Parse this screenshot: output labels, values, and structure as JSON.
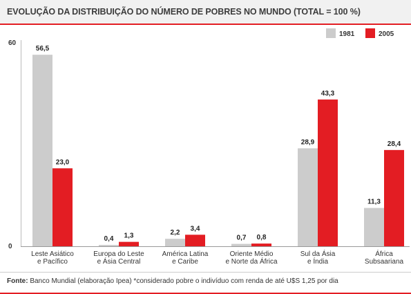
{
  "header": {
    "title": "EVOLUÇÃO DA DISTRIBUIÇÃO DO NÚMERO DE POBRES NO MUNDO (TOTAL = 100 %)"
  },
  "footer": {
    "source_label": "Fonte:",
    "source_text": "Banco Mundial (elaboração Ipea) *considerado pobre o indivíduo com renda de até U$S 1,25 por dia"
  },
  "chart_data": {
    "type": "bar",
    "categories": [
      [
        "Leste Asiático",
        "e Pacífico"
      ],
      [
        "Europa do Leste",
        "e Ásia Central"
      ],
      [
        "América Latina",
        "e Caribe"
      ],
      [
        "Oriente Médio",
        "e Norte da África"
      ],
      [
        "Sul da Ásia",
        "e Índia"
      ],
      [
        "África",
        "Subsaariana"
      ]
    ],
    "series": [
      {
        "name": "1981",
        "color": "#cccccc",
        "values": [
          56.5,
          0.4,
          2.2,
          0.7,
          28.9,
          11.3
        ],
        "labels": [
          "56,5",
          "0,4",
          "2,2",
          "0,7",
          "28,9",
          "11,3"
        ]
      },
      {
        "name": "2005",
        "color": "#e31d23",
        "values": [
          23.0,
          1.3,
          3.4,
          0.8,
          43.3,
          28.4
        ],
        "labels": [
          "23,0",
          "1,3",
          "3,4",
          "0,8",
          "43,3",
          "28,4"
        ]
      }
    ],
    "ylim": [
      0,
      60
    ],
    "yticks": [
      0,
      60
    ],
    "legend_position": "top-right",
    "grid": false
  }
}
